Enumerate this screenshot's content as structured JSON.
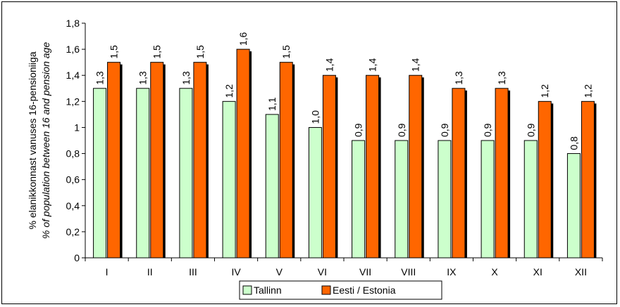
{
  "chart_data": {
    "type": "bar",
    "categories": [
      "I",
      "II",
      "III",
      "IV",
      "V",
      "VI",
      "VII",
      "VIII",
      "IX",
      "X",
      "XI",
      "XII"
    ],
    "series": [
      {
        "name": "Tallinn",
        "color": "#ccffcc",
        "values": [
          1.3,
          1.3,
          1.3,
          1.2,
          1.1,
          1.0,
          0.9,
          0.9,
          0.9,
          0.9,
          0.9,
          0.8
        ],
        "labels": [
          "1,3",
          "1,3",
          "1,3",
          "1,2",
          "1,1",
          "1,0",
          "0,9",
          "0,9",
          "0,9",
          "0,9",
          "0,9",
          "0,8"
        ]
      },
      {
        "name": "Eesti / Estonia",
        "color": "#ff6600",
        "values": [
          1.5,
          1.5,
          1.5,
          1.6,
          1.5,
          1.4,
          1.4,
          1.4,
          1.3,
          1.3,
          1.2,
          1.2
        ],
        "labels": [
          "1,5",
          "1,5",
          "1,5",
          "1,6",
          "1,5",
          "1,4",
          "1,4",
          "1,4",
          "1,3",
          "1,3",
          "1,2",
          "1,2"
        ]
      }
    ],
    "ylabel": "% elanikkonnast vanuses 16-pensioniiga",
    "ylabel2": "% of population between 16 and pension age",
    "ylim": [
      0,
      1.8
    ],
    "yticks": [
      0,
      0.2,
      0.4,
      0.6,
      0.8,
      1,
      1.2,
      1.4,
      1.6,
      1.8
    ],
    "ytick_labels": [
      "0",
      "0,2",
      "0,4",
      "0,6",
      "0,8",
      "1",
      "1,2",
      "1,4",
      "1,6",
      "1,8"
    ],
    "grid": false,
    "legend": "bottom-center"
  }
}
